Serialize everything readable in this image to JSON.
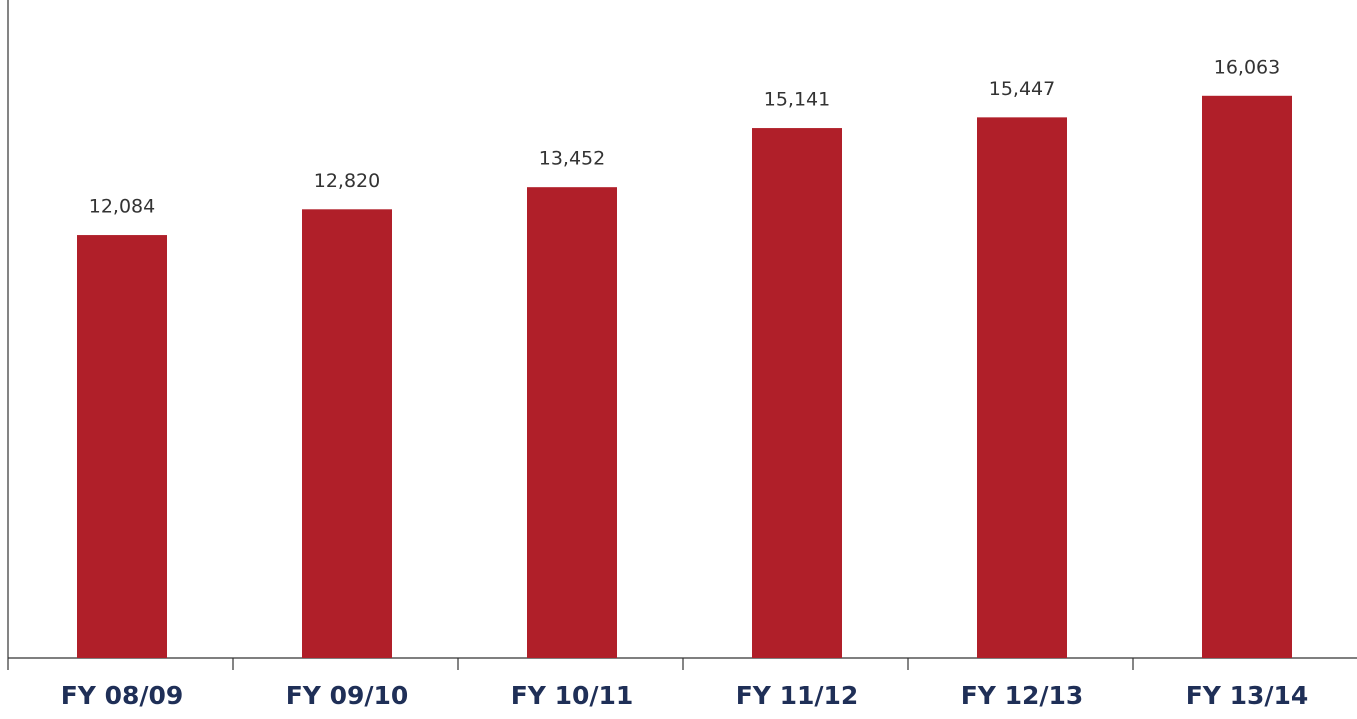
{
  "chart_data": {
    "type": "bar",
    "categories": [
      "FY 08/09",
      "FY 09/10",
      "FY 10/11",
      "FY 11/12",
      "FY 12/13",
      "FY 13/14"
    ],
    "values": [
      12084,
      12820,
      13452,
      15141,
      15447,
      16063
    ],
    "value_labels": [
      "12,084",
      "12,820",
      "13,452",
      "15,141",
      "15,447",
      "16,063"
    ],
    "color": "#b01f29",
    "ylim": [
      0,
      18800
    ]
  }
}
